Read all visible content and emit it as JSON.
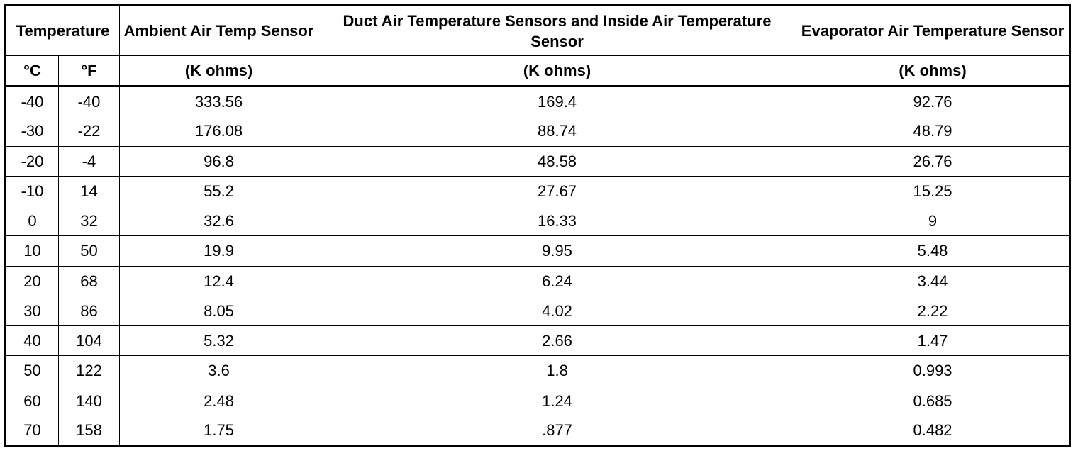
{
  "table": {
    "header": [
      "Temperature",
      "Ambient Air Temp Sensor",
      "Duct Air Temperature Sensors and Inside Air Temperature Sensor",
      "Evaporator Air Temperature Sensor"
    ],
    "units": [
      "°C",
      "°F",
      "(K ohms)",
      "(K ohms)",
      "(K ohms)"
    ],
    "rows": [
      [
        "-40",
        "-40",
        "333.56",
        "169.4",
        "92.76"
      ],
      [
        "-30",
        "-22",
        "176.08",
        "88.74",
        "48.79"
      ],
      [
        "-20",
        "-4",
        "96.8",
        "48.58",
        "26.76"
      ],
      [
        "-10",
        "14",
        "55.2",
        "27.67",
        "15.25"
      ],
      [
        "0",
        "32",
        "32.6",
        "16.33",
        "9"
      ],
      [
        "10",
        "50",
        "19.9",
        "9.95",
        "5.48"
      ],
      [
        "20",
        "68",
        "12.4",
        "6.24",
        "3.44"
      ],
      [
        "30",
        "86",
        "8.05",
        "4.02",
        "2.22"
      ],
      [
        "40",
        "104",
        "5.32",
        "2.66",
        "1.47"
      ],
      [
        "50",
        "122",
        "3.6",
        "1.8",
        "0.993"
      ],
      [
        "60",
        "140",
        "2.48",
        "1.24",
        "0.685"
      ],
      [
        "70",
        "158",
        "1.75",
        ".877",
        "0.482"
      ]
    ]
  }
}
